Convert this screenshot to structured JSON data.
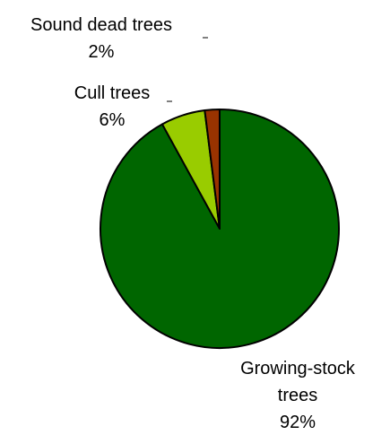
{
  "chart_data": {
    "type": "pie",
    "categories": [
      "Growing-stock trees",
      "Cull trees",
      "Sound dead trees"
    ],
    "values": [
      92,
      6,
      2
    ],
    "value_labels": [
      "92%",
      "6%",
      "2%"
    ],
    "colors": [
      "#006600",
      "#99cc00",
      "#993300"
    ]
  }
}
